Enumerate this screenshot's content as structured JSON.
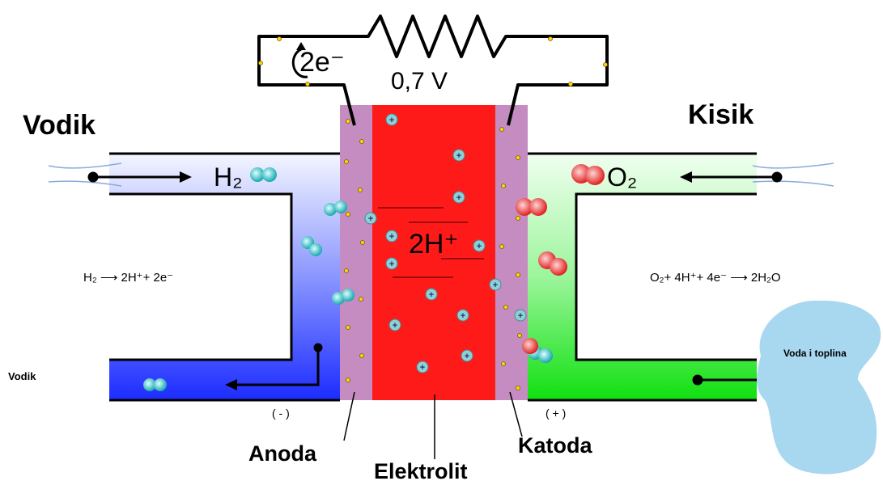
{
  "title_left": "Vodik",
  "title_right": "Kisik",
  "circuit": {
    "electrons": "2e⁻",
    "voltage": "0,7 V"
  },
  "inlet_left": "H₂",
  "inlet_right": "O₂",
  "ions": "2H⁺",
  "reaction_anode": "H₂ ⟶ 2H⁺+ 2e⁻",
  "reaction_cathode": "O₂+ 4H⁺+ 4e⁻ ⟶ 2H₂O",
  "outlet_left": "Vodik",
  "outlet_right": "Voda i toplina",
  "polarity_anode": "( - )",
  "polarity_cathode": "( + )",
  "parts": {
    "anode": "Anoda",
    "electrolyte": "Elektrolit",
    "cathode": "Katoda"
  }
}
